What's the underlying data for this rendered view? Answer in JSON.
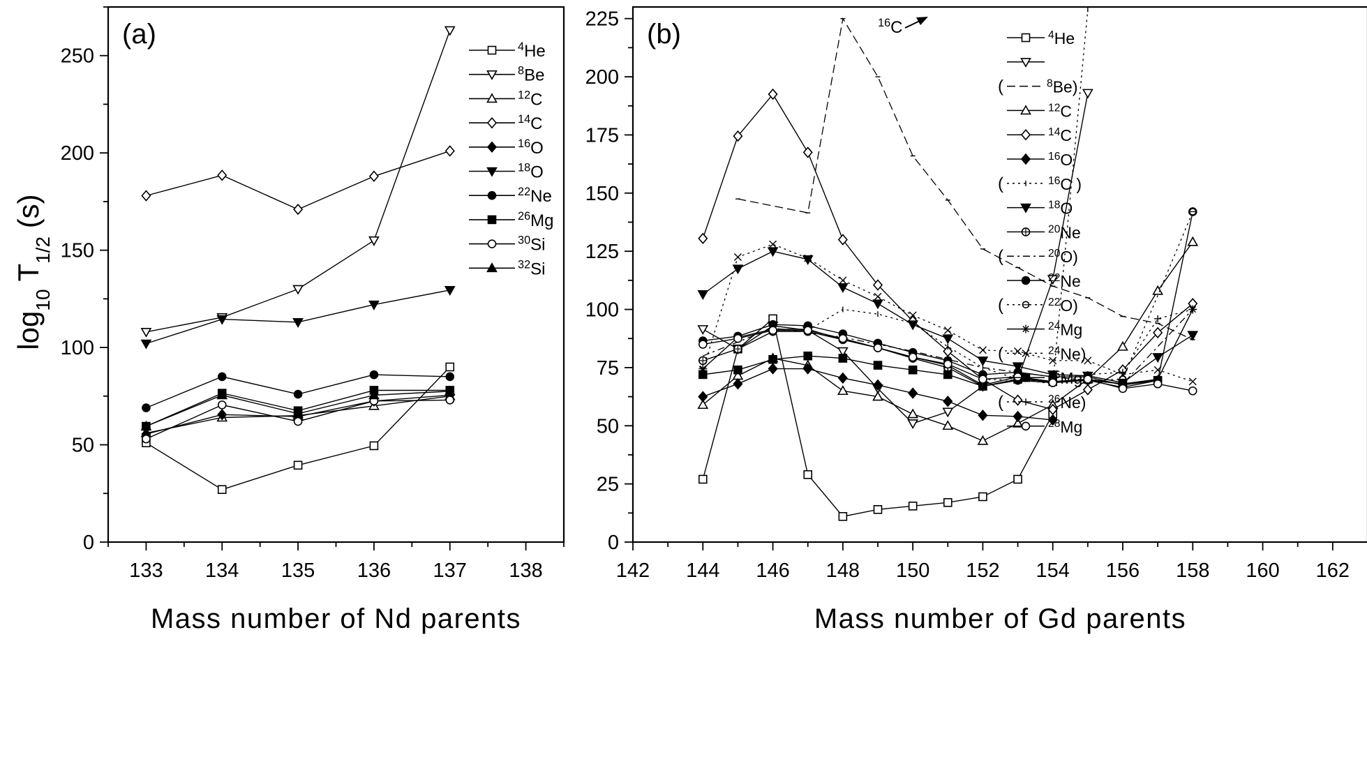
{
  "chart_data": [
    {
      "type": "line",
      "panel_label": "(a)",
      "xlabel": "Mass number of Nd parents",
      "ylabel": {
        "main": "log",
        "sub1": "10",
        "mid": " T",
        "sub2": "1/2",
        "tail": "(s)"
      },
      "xlim": [
        132.5,
        138.5
      ],
      "ylim": [
        0,
        275
      ],
      "xticks": [
        133,
        134,
        135,
        136,
        137,
        138
      ],
      "yticks": [
        0,
        50,
        100,
        150,
        200,
        250
      ],
      "legend_position": "top-right",
      "series": [
        {
          "name": "He",
          "mass": "4",
          "marker": "square",
          "filled": false,
          "dash": "solid",
          "x": [
            133,
            134,
            135,
            136,
            137
          ],
          "y": [
            51,
            27,
            39.5,
            49.5,
            90
          ]
        },
        {
          "name": "Be",
          "mass": "8",
          "marker": "triangle-down",
          "filled": false,
          "dash": "solid",
          "x": [
            133,
            134,
            135,
            136,
            137
          ],
          "y": [
            108,
            115.5,
            130,
            155,
            263
          ]
        },
        {
          "name": "C",
          "mass": "12",
          "marker": "triangle-up",
          "filled": false,
          "dash": "solid",
          "x": [
            133,
            134,
            135,
            136,
            137
          ],
          "y": [
            56,
            64,
            65,
            70,
            75
          ]
        },
        {
          "name": "C",
          "mass": "14",
          "marker": "diamond",
          "filled": false,
          "dash": "solid",
          "x": [
            133,
            134,
            135,
            136,
            137
          ],
          "y": [
            178,
            188.5,
            171,
            188,
            201
          ]
        },
        {
          "name": "O",
          "mass": "16",
          "marker": "diamond",
          "filled": true,
          "dash": "solid",
          "x": [
            133,
            134,
            135,
            136,
            137
          ],
          "y": [
            55.5,
            65.5,
            64.5,
            72.5,
            75.5
          ]
        },
        {
          "name": "O",
          "mass": "18",
          "marker": "triangle-down",
          "filled": true,
          "dash": "solid",
          "x": [
            133,
            134,
            135,
            136,
            137
          ],
          "y": [
            102,
            114.5,
            113,
            122,
            129.5
          ]
        },
        {
          "name": "Ne",
          "mass": "22",
          "marker": "circle",
          "filled": true,
          "dash": "solid",
          "x": [
            133,
            134,
            135,
            136,
            137
          ],
          "y": [
            69,
            85,
            76,
            86,
            85
          ]
        },
        {
          "name": "Mg",
          "mass": "26",
          "marker": "square",
          "filled": true,
          "dash": "solid",
          "x": [
            133,
            134,
            135,
            136,
            137
          ],
          "y": [
            59.5,
            76.5,
            67.5,
            78,
            78
          ]
        },
        {
          "name": "Si",
          "mass": "30",
          "marker": "circle",
          "filled": false,
          "dash": "solid",
          "x": [
            133,
            134,
            135,
            136,
            137
          ],
          "y": [
            53,
            70.5,
            62,
            72.5,
            73
          ]
        },
        {
          "name": "Si",
          "mass": "32",
          "marker": "triangle-up",
          "filled": true,
          "dash": "solid",
          "x": [
            133,
            134,
            135,
            136,
            137
          ],
          "y": [
            59.5,
            75.5,
            66,
            75.5,
            77.5
          ]
        }
      ]
    },
    {
      "type": "line",
      "panel_label": "(b)",
      "xlabel": "Mass number of Gd parents",
      "xlim": [
        142,
        163
      ],
      "ylim": [
        0,
        230
      ],
      "xticks": [
        142,
        144,
        146,
        148,
        150,
        152,
        154,
        156,
        158,
        160,
        162
      ],
      "yticks": [
        0,
        25,
        50,
        75,
        100,
        125,
        150,
        175,
        200,
        225
      ],
      "legend_position": "right",
      "annotation": {
        "mass": "16",
        "text": "C"
      },
      "series": [
        {
          "name": "He",
          "mass": "4",
          "marker": "square",
          "filled": false,
          "dash": "solid",
          "x": [
            144,
            145,
            146,
            147,
            148,
            149,
            150,
            151,
            152,
            153,
            154
          ],
          "y": [
            27,
            83,
            96,
            29,
            11,
            14,
            15.5,
            17,
            19.5,
            27,
            55
          ]
        },
        {
          "name": "Be",
          "mass": "8",
          "marker": "triangle-down",
          "filled": false,
          "dash": "solid",
          "x": [
            144,
            145,
            146,
            147,
            148,
            149,
            150,
            151,
            152,
            153,
            154,
            155
          ],
          "y": [
            91.5,
            83,
            93,
            91,
            82,
            66,
            51,
            56,
            67,
            70,
            113,
            193
          ]
        },
        {
          "name": "Be",
          "mass": "8",
          "marker": "dash",
          "filled": false,
          "dash": "dashed",
          "x": [
            145,
            147,
            148,
            149,
            150,
            151,
            152,
            153,
            154,
            155,
            156,
            157,
            158
          ],
          "y": [
            147.5,
            141.5,
            225,
            200,
            166,
            147,
            126,
            118,
            110,
            105,
            97,
            94,
            87
          ]
        },
        {
          "name": "C",
          "mass": "12",
          "marker": "triangle-up",
          "filled": false,
          "dash": "solid",
          "x": [
            144,
            145,
            146,
            147,
            148,
            149,
            150,
            151,
            152,
            153,
            154,
            155,
            156,
            157,
            158
          ],
          "y": [
            59,
            71.5,
            79,
            76,
            65,
            62.5,
            55,
            50,
            43.5,
            51,
            59,
            70,
            84,
            108,
            129
          ]
        },
        {
          "name": "C",
          "mass": "14",
          "marker": "diamond",
          "filled": false,
          "dash": "solid",
          "x": [
            144,
            145,
            146,
            147,
            148,
            149,
            150,
            151,
            152,
            153,
            154,
            155,
            156,
            157,
            158
          ],
          "y": [
            130.5,
            174.5,
            192.5,
            167.5,
            130,
            110.5,
            95,
            82,
            70,
            61,
            57,
            65.5,
            74,
            90,
            102.5
          ]
        },
        {
          "name": "O",
          "mass": "16",
          "marker": "diamond",
          "filled": true,
          "dash": "solid",
          "x": [
            144,
            145,
            146,
            147,
            148,
            149,
            150,
            151,
            152,
            153,
            154
          ],
          "y": [
            62.5,
            68,
            74.5,
            74.5,
            70.5,
            67.5,
            64,
            60.5,
            54.5,
            54,
            52.5
          ]
        },
        {
          "name": "C",
          "mass": "16",
          "marker": "vbar",
          "filled": false,
          "dash": "dotted",
          "x": [
            147,
            148,
            149,
            150,
            151,
            152,
            153,
            154,
            155
          ],
          "y": [
            91,
            100,
            98,
            94,
            84,
            75,
            70,
            68,
            229
          ]
        },
        {
          "name": "O",
          "mass": "18",
          "marker": "triangle-down",
          "filled": true,
          "dash": "solid",
          "x": [
            144,
            145,
            146,
            147,
            148,
            149,
            150,
            151,
            152,
            153,
            154,
            155,
            156,
            157,
            158
          ],
          "y": [
            106.5,
            117.5,
            125,
            121.5,
            109.5,
            102.5,
            93.5,
            87.5,
            78,
            75.5,
            72,
            71.5,
            68.5,
            79.5,
            89
          ]
        },
        {
          "name": "Ne",
          "mass": "20",
          "marker": "circle-plus",
          "filled": false,
          "dash": "solid",
          "x": [
            144,
            145,
            146,
            147,
            148,
            149,
            150,
            151,
            152,
            153,
            154,
            155,
            156,
            157,
            158
          ],
          "y": [
            78,
            83,
            90.5,
            90.5,
            87,
            83.5,
            79,
            75,
            67,
            69.5,
            68.5,
            69.5,
            66.5,
            69.5,
            142
          ]
        },
        {
          "name": "O",
          "mass": "20",
          "marker": "none",
          "filled": false,
          "dash": "dashdot",
          "x": [
            144,
            146,
            148,
            150,
            152,
            154,
            156,
            158
          ],
          "y": [
            80,
            92,
            88,
            82,
            75,
            71,
            68,
            100
          ]
        },
        {
          "name": "Ne",
          "mass": "22",
          "marker": "circle",
          "filled": true,
          "dash": "solid",
          "x": [
            144,
            145,
            146,
            147,
            148,
            149,
            150,
            151,
            152,
            153,
            154,
            155,
            156,
            157
          ],
          "y": [
            86.5,
            88.5,
            93.5,
            93,
            89.5,
            85.5,
            81.5,
            78,
            72,
            73,
            71,
            71,
            67.5,
            69.5
          ]
        },
        {
          "name": "O",
          "mass": "22",
          "marker": "circle-minus",
          "filled": false,
          "dash": "dotted",
          "x": [
            152,
            154,
            156,
            158
          ],
          "y": [
            70,
            69,
            70,
            142
          ]
        },
        {
          "name": "Mg",
          "mass": "24",
          "marker": "star",
          "filled": false,
          "dash": "solid",
          "x": [
            144,
            145,
            146,
            147,
            148,
            149,
            150,
            151,
            152,
            153,
            154,
            155,
            156,
            157,
            158
          ],
          "y": [
            74.5,
            88,
            91.5,
            91.5,
            87,
            83.5,
            79.5,
            76,
            67.5,
            71,
            69,
            69.5,
            68,
            70,
            100
          ]
        },
        {
          "name": "Ne",
          "mass": "24",
          "marker": "cross",
          "filled": false,
          "dash": "dotted",
          "x": [
            144,
            145,
            146,
            147,
            148,
            149,
            150,
            151,
            152,
            153,
            154,
            155,
            156,
            157,
            158
          ],
          "y": [
            74,
            122.5,
            128,
            122,
            112.5,
            105.5,
            97.5,
            91,
            82.5,
            82,
            78,
            78,
            72,
            74,
            69
          ]
        },
        {
          "name": "Mg",
          "mass": "26",
          "marker": "square",
          "filled": true,
          "dash": "solid",
          "x": [
            144,
            145,
            146,
            147,
            148,
            149,
            150,
            151,
            152,
            153,
            154,
            155,
            156,
            157
          ],
          "y": [
            72,
            74,
            78.5,
            80,
            79,
            76,
            74,
            72,
            67,
            70,
            69,
            70,
            68,
            69.5
          ]
        },
        {
          "name": "Ne",
          "mass": "26",
          "marker": "plus",
          "filled": false,
          "dash": "dotted",
          "x": [
            155,
            156,
            157,
            158
          ],
          "y": [
            72,
            73,
            96,
            100
          ]
        },
        {
          "name": "Mg",
          "mass": "28",
          "marker": "circle",
          "filled": false,
          "dash": "solid",
          "x": [
            144,
            145,
            146,
            147,
            148,
            149,
            150,
            151,
            152,
            153,
            154,
            155,
            156,
            157,
            158
          ],
          "y": [
            85,
            87.5,
            91,
            91,
            87.5,
            83.5,
            79.5,
            76.5,
            70,
            71,
            68.5,
            70,
            66,
            68,
            65
          ]
        }
      ],
      "legend": [
        {
          "marker": "square",
          "filled": false,
          "dash": "solid",
          "mass": "4",
          "name": "He",
          "before": "",
          "after": ""
        },
        {
          "marker": "triangle-down",
          "filled": false,
          "dash": "solid",
          "mass": "",
          "name": "",
          "before": "",
          "after": ""
        },
        {
          "marker": "none",
          "filled": false,
          "dash": "dashed",
          "mass": "8",
          "name": "Be",
          "before": "(",
          "after": ")"
        },
        {
          "marker": "triangle-up",
          "filled": false,
          "dash": "solid",
          "mass": "12",
          "name": "C",
          "before": "",
          "after": ""
        },
        {
          "marker": "diamond",
          "filled": false,
          "dash": "solid",
          "mass": "14",
          "name": "C",
          "before": "",
          "after": ""
        },
        {
          "marker": "diamond",
          "filled": true,
          "dash": "solid",
          "mass": "16",
          "name": "O",
          "before": "",
          "after": ""
        },
        {
          "marker": "vbar",
          "filled": false,
          "dash": "dotted",
          "mass": "16",
          "name": "C )",
          "before": "(",
          "after": ""
        },
        {
          "marker": "triangle-down",
          "filled": true,
          "dash": "solid",
          "mass": "18",
          "name": "O",
          "before": "",
          "after": ""
        },
        {
          "marker": "circle-plus",
          "filled": false,
          "dash": "solid",
          "mass": "20",
          "name": "Ne",
          "before": "",
          "after": ""
        },
        {
          "marker": "none",
          "filled": false,
          "dash": "dashdot",
          "mass": "20",
          "name": "O)",
          "before": "(",
          "after": ""
        },
        {
          "marker": "circle",
          "filled": true,
          "dash": "solid",
          "mass": "22",
          "name": "Ne",
          "before": "",
          "after": ""
        },
        {
          "marker": "circle-minus",
          "filled": false,
          "dash": "dotted",
          "mass": "22",
          "name": "O)",
          "before": "(",
          "after": ""
        },
        {
          "marker": "star",
          "filled": false,
          "dash": "solid",
          "mass": "24",
          "name": "Mg",
          "before": "",
          "after": ""
        },
        {
          "marker": "cross",
          "filled": false,
          "dash": "dotted",
          "mass": "24",
          "name": "Ne)",
          "before": "(",
          "after": ""
        },
        {
          "marker": "square",
          "filled": true,
          "dash": "solid",
          "mass": "26",
          "name": "Mg",
          "before": "",
          "after": ""
        },
        {
          "marker": "plus",
          "filled": false,
          "dash": "dotted",
          "mass": "26",
          "name": "Ne)",
          "before": "(",
          "after": ""
        },
        {
          "marker": "circle",
          "filled": false,
          "dash": "solid",
          "mass": "28",
          "name": "Mg",
          "before": "",
          "after": ""
        }
      ]
    }
  ]
}
